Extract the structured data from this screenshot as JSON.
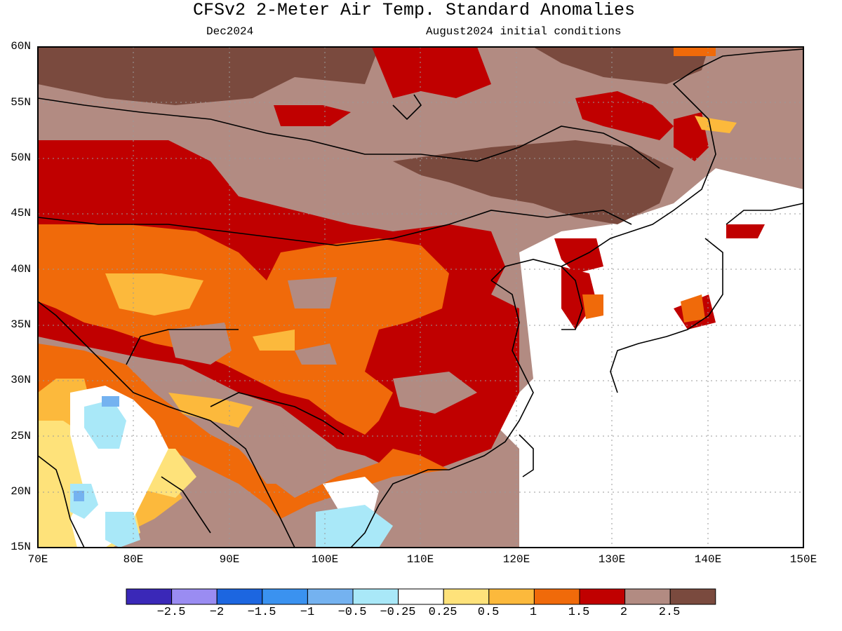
{
  "title": "CFSv2 2-Meter Air Temp. Standard Anomalies",
  "subtitle_left": "Dec2024",
  "subtitle_right": "August2024 initial conditions",
  "map": {
    "lon_range": [
      70,
      150
    ],
    "lat_range": [
      15,
      60
    ],
    "lon_ticks": [
      "70E",
      "80E",
      "90E",
      "100E",
      "110E",
      "120E",
      "130E",
      "140E",
      "150E"
    ],
    "lat_ticks": [
      "60N",
      "55N",
      "50N",
      "45N",
      "40N",
      "35N",
      "30N",
      "25N",
      "20N",
      "15N"
    ],
    "gridlines": "dotted",
    "region_description_colors": {
      "strong_positive": "#7a4a3e",
      "positive_2": "#b28b82",
      "positive_1_5": "#c00000",
      "positive_1": "#f06a0a",
      "positive_0_5": "#fcb93c",
      "positive_0_25": "#fee27a",
      "neutral": "#ffffff",
      "negative_0_25": "#a9e8f8",
      "negative_0_5": "#7ab6f0"
    }
  },
  "colorbar": {
    "colors": [
      "#3a28b8",
      "#9a8cf2",
      "#1c66e0",
      "#3a92f0",
      "#74b2f0",
      "#a9e8f8",
      "#ffffff",
      "#fee27a",
      "#fcb93c",
      "#f06a0a",
      "#c00000",
      "#b28b82",
      "#7a4a3e"
    ],
    "labels": [
      "−2.5",
      "−2",
      "−1.5",
      "−1",
      "−0.5",
      "−0.25",
      "0.25",
      "0.5",
      "1",
      "1.5",
      "2",
      "2.5"
    ]
  }
}
